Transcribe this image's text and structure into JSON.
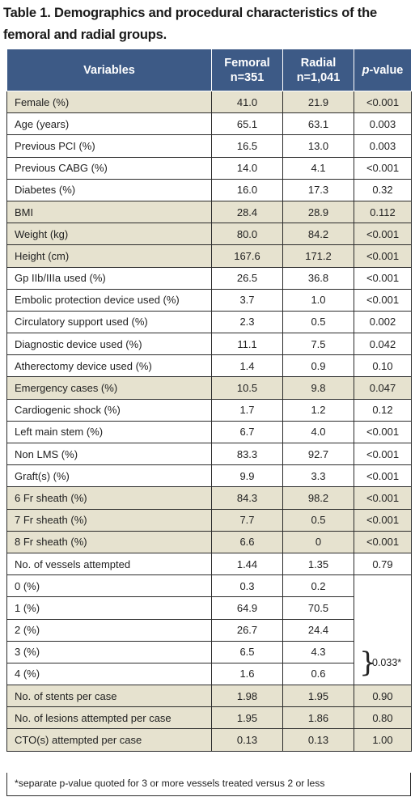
{
  "caption": "Table 1. Demographics and procedural characteristics of the femoral and radial groups.",
  "headers": {
    "variables": "Variables",
    "femoral_line1": "Femoral",
    "femoral_line2": "n=351",
    "radial_line1": "Radial",
    "radial_line2": "n=1,041",
    "pvalue_italic": "p",
    "pvalue_rest": "-value"
  },
  "rows": [
    {
      "label": "Female (%)",
      "femoral": "41.0",
      "radial": "21.9",
      "p": "<0.001"
    },
    {
      "label": "Age (years)",
      "femoral": "65.1",
      "radial": "63.1",
      "p": "0.003"
    },
    {
      "label": "Previous PCI (%)",
      "femoral": "16.5",
      "radial": "13.0",
      "p": "0.003"
    },
    {
      "label": "Previous CABG (%)",
      "femoral": "14.0",
      "radial": "4.1",
      "p": "<0.001"
    },
    {
      "label": "Diabetes (%)",
      "femoral": "16.0",
      "radial": "17.3",
      "p": "0.32"
    },
    {
      "label": "BMI",
      "femoral": "28.4",
      "radial": "28.9",
      "p": "0.112"
    },
    {
      "label": "Weight (kg)",
      "femoral": "80.0",
      "radial": "84.2",
      "p": "<0.001"
    },
    {
      "label": "Height (cm)",
      "femoral": "167.6",
      "radial": "171.2",
      "p": "<0.001"
    },
    {
      "label": "Gp IIb/IIIa used (%)",
      "femoral": "26.5",
      "radial": "36.8",
      "p": "<0.001"
    },
    {
      "label": "Embolic protection device used (%)",
      "femoral": "3.7",
      "radial": "1.0",
      "p": "<0.001"
    },
    {
      "label": "Circulatory support used (%)",
      "femoral": "2.3",
      "radial": "0.5",
      "p": "0.002"
    },
    {
      "label": "Diagnostic device used (%)",
      "femoral": "11.1",
      "radial": "7.5",
      "p": "0.042"
    },
    {
      "label": "Atherectomy device used (%)",
      "femoral": "1.4",
      "radial": "0.9",
      "p": "0.10"
    },
    {
      "label": "Emergency cases (%)",
      "femoral": "10.5",
      "radial": "9.8",
      "p": "0.047"
    },
    {
      "label": "Cardiogenic shock (%)",
      "femoral": "1.7",
      "radial": "1.2",
      "p": "0.12"
    },
    {
      "label": "Left main stem (%)",
      "femoral": "6.7",
      "radial": "4.0",
      "p": "<0.001"
    },
    {
      "label": "Non LMS (%)",
      "femoral": "83.3",
      "radial": "92.7",
      "p": "<0.001"
    },
    {
      "label": "Graft(s) (%)",
      "femoral": "9.9",
      "radial": "3.3",
      "p": "<0.001"
    },
    {
      "label": "6 Fr sheath (%)",
      "femoral": "84.3",
      "radial": "98.2",
      "p": "<0.001"
    },
    {
      "label": "7 Fr sheath (%)",
      "femoral": "7.7",
      "radial": "0.5",
      "p": "<0.001"
    },
    {
      "label": "8 Fr sheath (%)",
      "femoral": "6.6",
      "radial": "0",
      "p": "<0.001"
    },
    {
      "label": "No. of vessels attempted",
      "femoral": "1.44",
      "radial": "1.35",
      "p": "0.79"
    },
    {
      "label": "0 (%)",
      "femoral": "0.3",
      "radial": "0.2",
      "p": ""
    },
    {
      "label": "1 (%)",
      "femoral": "64.9",
      "radial": "70.5",
      "p": ""
    },
    {
      "label": "2 (%)",
      "femoral": "26.7",
      "radial": "24.4",
      "p": ""
    },
    {
      "label": "3 (%)",
      "femoral": "6.5",
      "radial": "4.3",
      "p": ""
    },
    {
      "label": "4 (%)",
      "femoral": "1.6",
      "radial": "0.6",
      "p": ""
    },
    {
      "label": "No. of stents per case",
      "femoral": "1.98",
      "radial": "1.95",
      "p": "0.90"
    },
    {
      "label": "No. of lesions attempted per case",
      "femoral": "1.95",
      "radial": "1.86",
      "p": "0.80"
    },
    {
      "label": "CTO(s) attempted per case",
      "femoral": "0.13",
      "radial": "0.13",
      "p": "1.00"
    }
  ],
  "brace_pvalue": "0.033*",
  "footnote": "*separate p-value quoted for 3 or more vessels treated versus 2 or less",
  "colors": {
    "header_bg": "#3d5a86",
    "shaded_row": "#e6e2cf",
    "plain_row": "#ffffff"
  }
}
